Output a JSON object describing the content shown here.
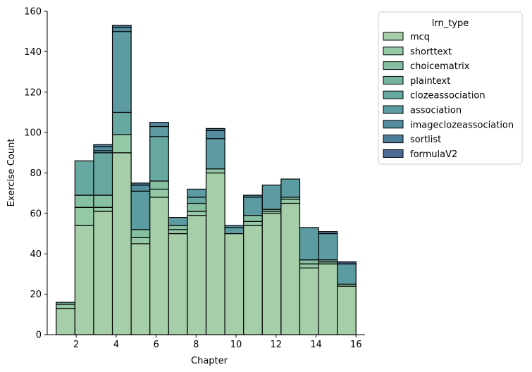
{
  "chart_data": {
    "type": "bar",
    "stacked": true,
    "xlabel": "Chapter",
    "ylabel": "Exercise Count",
    "xlim": [
      0.55,
      16.45
    ],
    "ylim": [
      0,
      160
    ],
    "xticks": [
      2,
      4,
      6,
      8,
      10,
      12,
      14,
      16
    ],
    "yticks": [
      0,
      20,
      40,
      60,
      80,
      100,
      120,
      140,
      160
    ],
    "grid": false,
    "legend": {
      "title": "lrn_type",
      "placement": "right"
    },
    "bins": [
      {
        "x0": 1.0,
        "x1": 1.9375
      },
      {
        "x0": 1.9375,
        "x1": 2.875
      },
      {
        "x0": 2.875,
        "x1": 3.8125
      },
      {
        "x0": 3.8125,
        "x1": 4.75
      },
      {
        "x0": 4.75,
        "x1": 5.6875
      },
      {
        "x0": 5.6875,
        "x1": 6.625
      },
      {
        "x0": 6.625,
        "x1": 7.5625
      },
      {
        "x0": 7.5625,
        "x1": 8.5
      },
      {
        "x0": 8.5,
        "x1": 9.4375
      },
      {
        "x0": 9.4375,
        "x1": 10.375
      },
      {
        "x0": 10.375,
        "x1": 11.3125
      },
      {
        "x0": 11.3125,
        "x1": 12.25
      },
      {
        "x0": 12.25,
        "x1": 13.1875
      },
      {
        "x0": 13.1875,
        "x1": 14.125
      },
      {
        "x0": 14.125,
        "x1": 15.0625
      },
      {
        "x0": 15.0625,
        "x1": 16.0
      }
    ],
    "series": [
      {
        "name": "mcq",
        "color": "#a6cfa9",
        "values": [
          13,
          54,
          61,
          90,
          45,
          68,
          50,
          59,
          80,
          50,
          54,
          60,
          65,
          33,
          35,
          24
        ]
      },
      {
        "name": "shorttext",
        "color": "#95c8a4",
        "values": [
          2,
          9,
          2,
          9,
          3,
          4,
          2,
          2,
          2,
          0,
          2,
          1,
          2,
          2,
          1,
          1
        ]
      },
      {
        "name": "choicematrix",
        "color": "#85c0a2",
        "values": [
          0,
          6,
          6,
          0,
          4,
          4,
          2,
          4,
          0,
          0,
          3,
          1,
          1,
          2,
          1,
          0
        ]
      },
      {
        "name": "plaintext",
        "color": "#75b4a3",
        "values": [
          1,
          0,
          0,
          0,
          0,
          0,
          0,
          0,
          0,
          0,
          0,
          0,
          0,
          0,
          0,
          0
        ]
      },
      {
        "name": "clozeassociation",
        "color": "#68a8a3",
        "values": [
          0,
          17,
          21,
          11,
          0,
          22,
          0,
          3,
          0,
          0,
          0,
          0,
          0,
          0,
          0,
          0
        ]
      },
      {
        "name": "association",
        "color": "#5d9ba2",
        "values": [
          0,
          0,
          1,
          40,
          19,
          5,
          4,
          4,
          15,
          3,
          9,
          12,
          9,
          16,
          13,
          10
        ]
      },
      {
        "name": "imageclozeassociation",
        "color": "#538c9f",
        "values": [
          0,
          0,
          2,
          2,
          3,
          2,
          0,
          0,
          4,
          1,
          1,
          0,
          0,
          0,
          0,
          0
        ]
      },
      {
        "name": "sortlist",
        "color": "#4d7c9b",
        "values": [
          0,
          0,
          1,
          1,
          1,
          0,
          0,
          0,
          1,
          0,
          0,
          0,
          0,
          0,
          1,
          0
        ]
      },
      {
        "name": "formulaV2",
        "color": "#4c6c96",
        "values": [
          0,
          0,
          0,
          0,
          0,
          0,
          0,
          0,
          0,
          0,
          0,
          0,
          0,
          0,
          0,
          1
        ]
      }
    ]
  }
}
